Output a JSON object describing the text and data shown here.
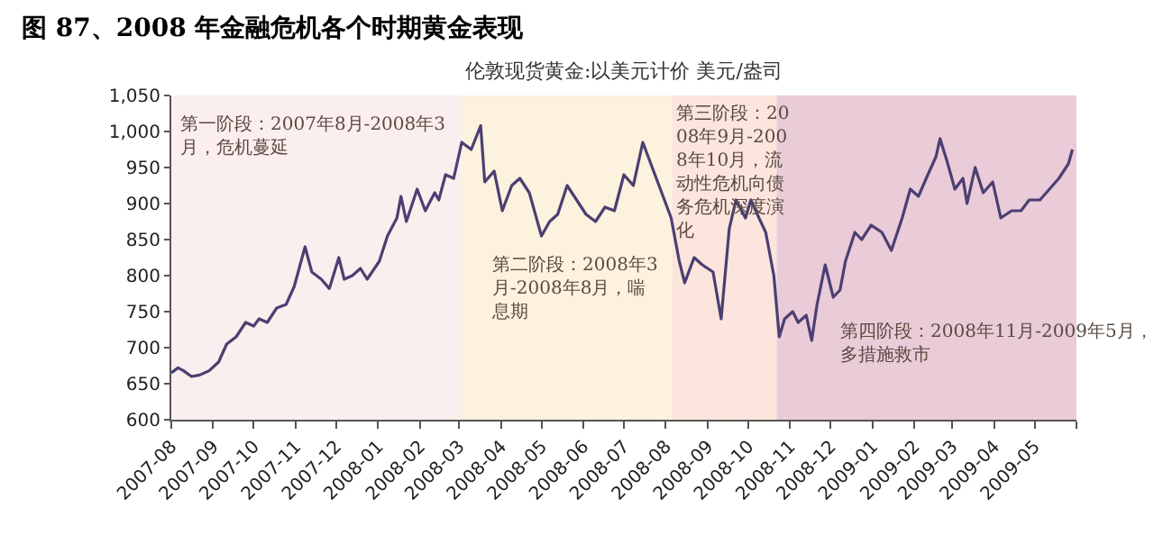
{
  "chart_data": {
    "type": "line",
    "title": "图 87、2008 年金融危机各个时期黄金表现",
    "subtitle": "伦敦现货黄金:以美元计价 美元/盎司",
    "x": [
      "2007-08-01",
      "2007-08-06",
      "2007-08-10",
      "2007-08-16",
      "2007-08-22",
      "2007-08-29",
      "2007-09-05",
      "2007-09-11",
      "2007-09-18",
      "2007-09-25",
      "2007-10-01",
      "2007-10-05",
      "2007-10-11",
      "2007-10-18",
      "2007-10-25",
      "2007-10-31",
      "2007-11-08",
      "2007-11-13",
      "2007-11-20",
      "2007-11-26",
      "2007-12-03",
      "2007-12-07",
      "2007-12-13",
      "2007-12-19",
      "2007-12-24",
      "2008-01-02",
      "2008-01-08",
      "2008-01-15",
      "2008-01-18",
      "2008-01-22",
      "2008-01-30",
      "2008-02-05",
      "2008-02-12",
      "2008-02-15",
      "2008-02-20",
      "2008-02-26",
      "2008-03-03",
      "2008-03-10",
      "2008-03-17",
      "2008-03-20",
      "2008-03-27",
      "2008-04-02",
      "2008-04-09",
      "2008-04-15",
      "2008-04-22",
      "2008-05-01",
      "2008-05-07",
      "2008-05-13",
      "2008-05-20",
      "2008-05-27",
      "2008-06-03",
      "2008-06-10",
      "2008-06-17",
      "2008-06-24",
      "2008-07-01",
      "2008-07-08",
      "2008-07-15",
      "2008-07-22",
      "2008-07-29",
      "2008-08-05",
      "2008-08-11",
      "2008-08-15",
      "2008-08-22",
      "2008-08-28",
      "2008-09-05",
      "2008-09-11",
      "2008-09-17",
      "2008-09-22",
      "2008-09-29",
      "2008-10-03",
      "2008-10-09",
      "2008-10-14",
      "2008-10-20",
      "2008-10-24",
      "2008-10-28",
      "2008-11-03",
      "2008-11-07",
      "2008-11-13",
      "2008-11-17",
      "2008-11-21",
      "2008-11-27",
      "2008-12-03",
      "2008-12-08",
      "2008-12-12",
      "2008-12-19",
      "2008-12-24",
      "2008-12-31",
      "2009-01-08",
      "2009-01-15",
      "2009-01-23",
      "2009-01-29",
      "2009-02-04",
      "2009-02-11",
      "2009-02-17",
      "2009-02-20",
      "2009-02-25",
      "2009-03-03",
      "2009-03-09",
      "2009-03-12",
      "2009-03-18",
      "2009-03-24",
      "2009-03-31",
      "2009-04-06",
      "2009-04-14",
      "2009-04-21",
      "2009-04-27",
      "2009-05-05",
      "2009-05-12",
      "2009-05-19",
      "2009-05-26",
      "2009-05-29"
    ],
    "series": [
      {
        "color": "#4b3f72",
        "values": [
          665,
          672,
          668,
          660,
          662,
          668,
          680,
          705,
          715,
          735,
          730,
          740,
          735,
          755,
          760,
          785,
          840,
          805,
          795,
          782,
          825,
          795,
          800,
          810,
          795,
          820,
          855,
          880,
          910,
          875,
          920,
          890,
          915,
          905,
          940,
          935,
          985,
          975,
          1008,
          930,
          945,
          890,
          925,
          935,
          915,
          855,
          875,
          885,
          925,
          905,
          885,
          875,
          895,
          890,
          940,
          925,
          985,
          950,
          915,
          880,
          820,
          790,
          825,
          815,
          805,
          740,
          865,
          905,
          880,
          905,
          880,
          860,
          800,
          715,
          740,
          750,
          735,
          745,
          710,
          760,
          815,
          770,
          780,
          820,
          860,
          850,
          870,
          860,
          835,
          880,
          920,
          910,
          940,
          965,
          990,
          960,
          920,
          935,
          900,
          950,
          915,
          930,
          880,
          890,
          890,
          905,
          905,
          920,
          935,
          955,
          975
        ]
      }
    ],
    "xlim": [
      "2007-08-01",
      "2009-06-01"
    ],
    "xticks": [
      "2007-08",
      "2007-09",
      "2007-10",
      "2007-11",
      "2007-12",
      "2008-01",
      "2008-02",
      "2008-03",
      "2008-04",
      "2008-05",
      "2008-06",
      "2008-07",
      "2008-08",
      "2008-09",
      "2008-10",
      "2008-11",
      "2008-12",
      "2009-01",
      "2009-02",
      "2009-03",
      "2009-04",
      "2009-05",
      {
        "value": "2009-06",
        "label": null
      }
    ],
    "ylim": [
      600,
      1050
    ],
    "yticks": [
      600,
      650,
      700,
      750,
      800,
      850,
      900,
      950,
      {
        "value": 1000,
        "label": "1,000"
      },
      {
        "value": 1050,
        "label": "1,050"
      }
    ],
    "bands": [
      {
        "axis": "x",
        "from": "2007-08-01",
        "to": "2008-03-03",
        "color": "#fbeeee",
        "label": "第一阶段：2007年8月-2008年3月，危机蔓延"
      },
      {
        "axis": "x",
        "from": "2008-03-03",
        "to": "2008-08-06",
        "color": "#fdf2de",
        "label": "第二阶段：2008年3月-2008年8月，喘息期"
      },
      {
        "axis": "x",
        "from": "2008-08-06",
        "to": "2008-10-22",
        "color": "#fbe5dc",
        "label": "第三阶段：2008年9月-2008年10月，流动性危机向债务危机深度演化"
      },
      {
        "axis": "x",
        "from": "2008-10-22",
        "to": "2009-06-01",
        "color": "#eacbd8",
        "label": "第四阶段：2008年11月-2009年5月，多措施救市"
      }
    ],
    "grid": false,
    "marker": "none",
    "line_style": "solid"
  }
}
